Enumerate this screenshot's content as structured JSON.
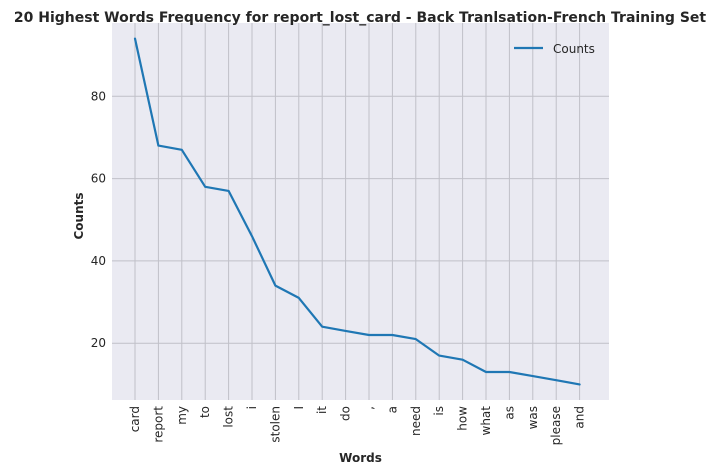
{
  "chart_data": {
    "type": "line",
    "title": "20 Highest Words Frequency for report_lost_card - Back Tranlsation-French Training Set",
    "xlabel": "Words",
    "ylabel": "Counts",
    "categories": [
      "card",
      "report",
      "my",
      "to",
      "lost",
      "i",
      "stolen",
      "I",
      "it",
      "do",
      ",",
      "a",
      "need",
      "is",
      "how",
      "what",
      "as",
      "was",
      "please",
      "and"
    ],
    "series": [
      {
        "name": "Counts",
        "color": "#1f77b4",
        "values": [
          94,
          68,
          67,
          58,
          57,
          46,
          34,
          31,
          24,
          23,
          22,
          22,
          21,
          17,
          16,
          13,
          13,
          12,
          11,
          10
        ]
      }
    ],
    "yticks": [
      20,
      40,
      60,
      80
    ],
    "ylim": [
      6.2,
      97.8
    ],
    "grid": true,
    "legend_position": "top-right",
    "colors": {
      "plot_background": "#eaeaf2",
      "grid": "#c0c0c8"
    }
  }
}
